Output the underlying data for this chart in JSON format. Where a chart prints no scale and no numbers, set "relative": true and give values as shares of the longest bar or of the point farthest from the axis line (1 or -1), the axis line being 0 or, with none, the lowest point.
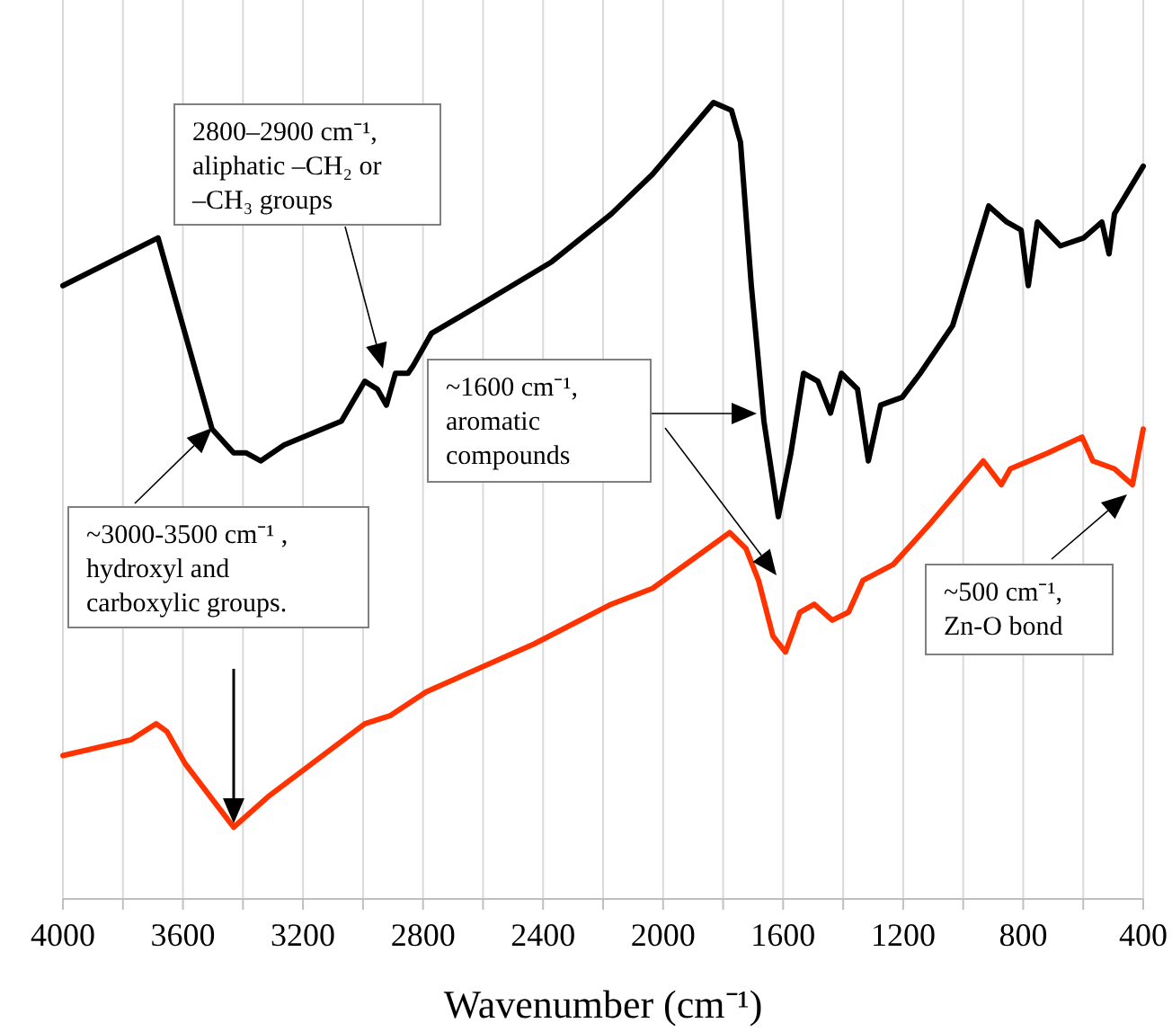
{
  "chart_data": {
    "type": "line",
    "relative": true,
    "xlabel": "Wavenumber (cm⁻¹)",
    "xlim": [
      4000,
      400
    ],
    "xticks": [
      4000,
      {
        "value": 3800,
        "label": null
      },
      3600,
      {
        "value": 3400,
        "label": null
      },
      3200,
      {
        "value": 3000,
        "label": null
      },
      2800,
      {
        "value": 2600,
        "label": null
      },
      2400,
      {
        "value": 2200,
        "label": null
      },
      2000,
      {
        "value": 1800,
        "label": null
      },
      1600,
      {
        "value": 1400,
        "label": null
      },
      1200,
      {
        "value": 1000,
        "label": null
      },
      800,
      {
        "value": 600,
        "label": null
      },
      400
    ],
    "grid": "x",
    "marker": "none",
    "line_style": "solid",
    "series": [
      {
        "color": "#000000",
        "x": [
          4000,
          3683,
          3503,
          3431,
          3389,
          3341,
          3263,
          3072,
          2994,
          2952,
          2922,
          2892,
          2850,
          2832,
          2772,
          2592,
          2371,
          2173,
          2035,
          1832,
          1772,
          1742,
          1706,
          1664,
          1616,
          1574,
          1532,
          1484,
          1442,
          1406,
          1352,
          1316,
          1275,
          1203,
          1143,
          1035,
          915,
          855,
          807,
          783,
          753,
          676,
          598,
          538,
          514,
          496,
          400
        ],
        "values": [
          0.77,
          0.83,
          0.59,
          0.56,
          0.56,
          0.55,
          0.57,
          0.6,
          0.65,
          0.64,
          0.62,
          0.66,
          0.66,
          0.67,
          0.71,
          0.75,
          0.8,
          0.86,
          0.91,
          1,
          0.99,
          0.95,
          0.77,
          0.6,
          0.48,
          0.56,
          0.66,
          0.65,
          0.61,
          0.66,
          0.64,
          0.55,
          0.62,
          0.63,
          0.66,
          0.72,
          0.87,
          0.85,
          0.84,
          0.77,
          0.85,
          0.82,
          0.83,
          0.85,
          0.81,
          0.86,
          0.92
        ]
      },
      {
        "color": "#ff3300",
        "x": [
          4000,
          3772,
          3689,
          3653,
          3593,
          3431,
          3311,
          2994,
          2910,
          2790,
          2431,
          2173,
          2035,
          1778,
          1724,
          1682,
          1634,
          1592,
          1544,
          1496,
          1436,
          1382,
          1334,
          1233,
          1113,
          933,
          873,
          843,
          717,
          604,
          568,
          496,
          436,
          400
        ],
        "values": [
          0.18,
          0.2,
          0.22,
          0.21,
          0.17,
          0.09,
          0.13,
          0.22,
          0.23,
          0.26,
          0.32,
          0.37,
          0.39,
          0.46,
          0.44,
          0.4,
          0.33,
          0.31,
          0.36,
          0.37,
          0.35,
          0.36,
          0.4,
          0.42,
          0.47,
          0.55,
          0.52,
          0.54,
          0.56,
          0.58,
          0.55,
          0.54,
          0.52,
          0.59
        ]
      }
    ],
    "annotations": [
      "2800–2900 cm⁻¹,\naliphatic –CH₂ or\n–CH₃ groups",
      "~3000-3500 cm⁻¹ ,\nhydroxyl and\ncarboxylic groups.",
      "~1600 cm⁻¹,\naromatic\ncompounds",
      "~500 cm⁻¹,\nZn-O bond"
    ]
  }
}
